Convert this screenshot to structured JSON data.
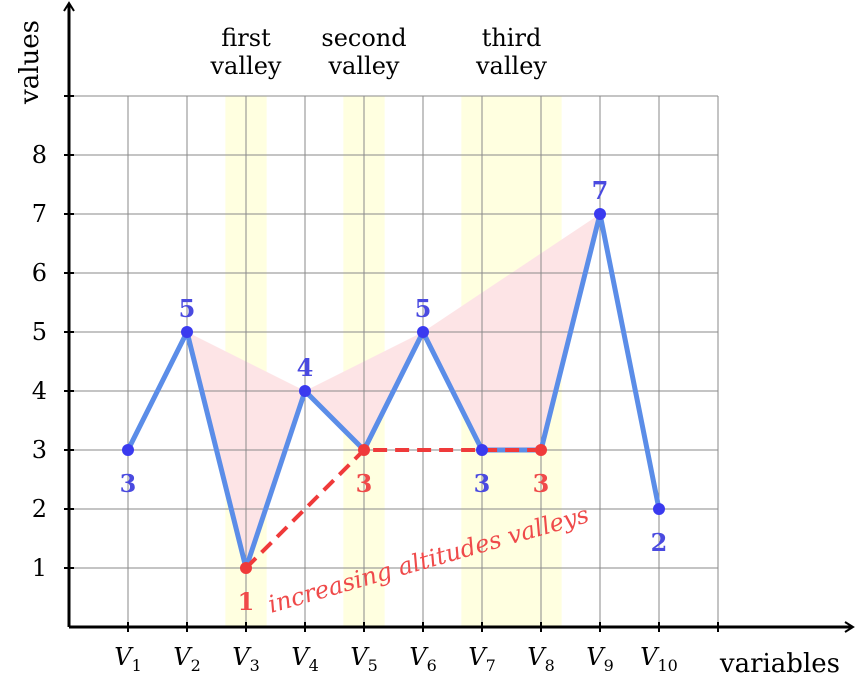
{
  "chart_data": {
    "type": "line",
    "xlabel": "variables",
    "ylabel": "values",
    "categories": [
      {
        "base": "V",
        "sub": "1"
      },
      {
        "base": "V",
        "sub": "2"
      },
      {
        "base": "V",
        "sub": "3"
      },
      {
        "base": "V",
        "sub": "4"
      },
      {
        "base": "V",
        "sub": "5"
      },
      {
        "base": "V",
        "sub": "6"
      },
      {
        "base": "V",
        "sub": "7"
      },
      {
        "base": "V",
        "sub": "8"
      },
      {
        "base": "V",
        "sub": "9"
      },
      {
        "base": "V",
        "sub": "10"
      }
    ],
    "values": [
      3,
      5,
      1,
      4,
      3,
      5,
      3,
      3,
      7,
      2
    ],
    "value_labels": [
      "3",
      "5",
      "1",
      "4",
      "3",
      "5",
      "3",
      "3",
      "7",
      "2"
    ],
    "highlighted_indices": [
      2,
      4,
      7
    ],
    "y_ticks": [
      "1",
      "2",
      "3",
      "4",
      "5",
      "6",
      "7",
      "8"
    ],
    "ylim": [
      0,
      9
    ],
    "xlim": [
      0,
      11
    ],
    "grid": true,
    "valleys": [
      {
        "title_line1": "first",
        "title_line2": "valley",
        "from": 2.65,
        "to": 3.35,
        "peaks": [
          1,
          3
        ],
        "floor": [
          2
        ]
      },
      {
        "title_line1": "second",
        "title_line2": "valley",
        "from": 4.65,
        "to": 5.35,
        "peaks": [
          3,
          5
        ],
        "floor": [
          4
        ]
      },
      {
        "title_line1": "third",
        "title_line2": "valley",
        "from": 6.65,
        "to": 8.35,
        "peaks": [
          5,
          8
        ],
        "floor": [
          6,
          7
        ]
      }
    ],
    "annotation": "increasing altitudes valleys",
    "colors": {
      "line": "#5b8de8",
      "point": "#3a3aef",
      "label": "#4a4ae0",
      "highlight": "#ef3a3a",
      "highlight_label": "#ef4a4a",
      "valley_band": "#ffffe0",
      "valley_fill": "#fde4e6",
      "grid": "#8a8a8a",
      "axis": "#000000"
    }
  }
}
